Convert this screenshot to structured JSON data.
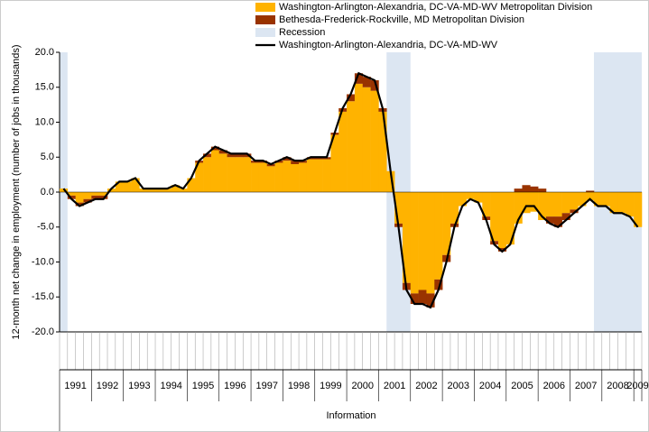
{
  "chart_data": {
    "type": "stacked-bar-line",
    "y_label": "12-month net change in employment (number of jobs in thousands)",
    "x_label": "Information",
    "year_labels": [
      "1991",
      "1992",
      "1993",
      "1994",
      "1995",
      "1996",
      "1997",
      "1998",
      "1999",
      "2000",
      "2001",
      "2002",
      "2003",
      "2004",
      "2005",
      "2006",
      "2007",
      "2008",
      "2009"
    ],
    "ylim": [
      -20,
      20
    ],
    "yticks": [
      {
        "value": 20,
        "label": "20.0"
      },
      {
        "value": 15,
        "label": "15.0"
      },
      {
        "value": 10,
        "label": "10.0"
      },
      {
        "value": 5,
        "label": "5.0"
      },
      {
        "value": 0,
        "label": "0.0"
      },
      {
        "value": -5,
        "label": "-5.0"
      },
      {
        "value": -10,
        "label": "-10.0"
      },
      {
        "value": -15,
        "label": "-15.0"
      },
      {
        "value": -20,
        "label": "-20.0"
      }
    ],
    "recession": {
      "name": "Recession",
      "color": "#dce6f2",
      "periods": [
        [
          0,
          1
        ],
        [
          41,
          44
        ],
        [
          67,
          73
        ]
      ]
    },
    "series": [
      {
        "name": "Washington-Arlington-Alexandria, DC-VA-MD-WV Metropolitan Division",
        "color": "#ffb300",
        "kind": "bar",
        "values": [
          0.5,
          -0.5,
          -1.5,
          -1,
          -0.5,
          -0.5,
          0.5,
          1.5,
          1.5,
          2,
          0.5,
          0.5,
          0.5,
          0.5,
          1,
          0.5,
          2,
          4.2,
          5,
          6,
          5.5,
          5,
          5,
          5,
          4.2,
          4.2,
          3.7,
          4.2,
          4.5,
          4,
          4.2,
          4.7,
          4.7,
          4.7,
          8.2,
          11.5,
          13,
          15.5,
          15,
          14.5,
          11.5,
          3,
          -4.5,
          -13,
          -14.5,
          -14,
          -14.5,
          -12.5,
          -9,
          -4.5,
          -2,
          -1,
          -1.5,
          -3.5,
          -7,
          -8,
          -7.5,
          -4.5,
          -3,
          -2.8,
          -4,
          -3.5,
          -3.5,
          -3,
          -2.5,
          -2,
          -1.2,
          -2,
          -2,
          -3,
          -3,
          -3.5,
          -5
        ]
      },
      {
        "name": "Bethesda-Frederick-Rockville, MD Metropolitan Division",
        "color": "#993300",
        "kind": "bar",
        "values": [
          0,
          -0.5,
          -0.5,
          -0.5,
          -0.5,
          -0.5,
          0,
          0,
          0,
          0,
          0,
          0,
          0,
          0,
          0,
          0,
          0,
          0.3,
          0.5,
          0.5,
          0.5,
          0.5,
          0.5,
          0.5,
          0.3,
          0.3,
          0.3,
          0.3,
          0.5,
          0.5,
          0.3,
          0.3,
          0.3,
          0.3,
          0.3,
          0.5,
          1,
          1.5,
          1.5,
          1.5,
          0.5,
          0,
          -0.5,
          -1,
          -1.5,
          -2,
          -2,
          -1.5,
          -1,
          -0.5,
          0,
          0,
          0,
          -0.5,
          -0.5,
          -0.5,
          0,
          0.5,
          1,
          0.8,
          0.5,
          -1,
          -1.5,
          -1,
          -0.5,
          0,
          0.2,
          0,
          0,
          0,
          0,
          0,
          0
        ]
      },
      {
        "name": "Washington-Arlington-Alexandria, DC-VA-MD-WV",
        "color": "#000000",
        "kind": "line",
        "values": [
          0.5,
          -1,
          -2,
          -1.5,
          -1,
          -1,
          0.5,
          1.5,
          1.5,
          2,
          0.5,
          0.5,
          0.5,
          0.5,
          1,
          0.5,
          2,
          4.5,
          5.5,
          6.5,
          6,
          5.5,
          5.5,
          5.5,
          4.5,
          4.5,
          4,
          4.5,
          5,
          4.5,
          4.5,
          5,
          5,
          5,
          8.5,
          12,
          14,
          17,
          16.5,
          16,
          12,
          3,
          -5,
          -14,
          -16,
          -16,
          -16.5,
          -14,
          -10,
          -5,
          -2,
          -1,
          -1.5,
          -4,
          -7.5,
          -8.5,
          -7.5,
          -4,
          -2,
          -2,
          -3.5,
          -4.5,
          -5,
          -4,
          -3,
          -2,
          -1,
          -2,
          -2,
          -3,
          -3,
          -3.5,
          -5
        ]
      }
    ]
  }
}
